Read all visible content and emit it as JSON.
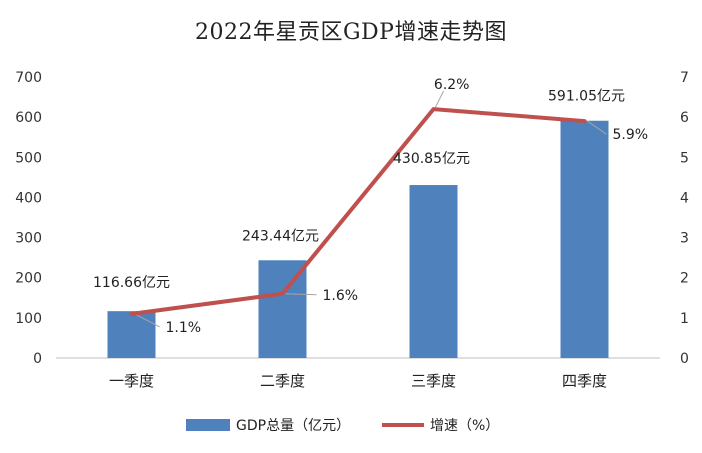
{
  "chart_data": {
    "type": "bar",
    "title": "2022年星贡区GDP增速走势图",
    "categories": [
      "一季度",
      "二季度",
      "三季度",
      "四季度"
    ],
    "series": [
      {
        "name": "GDP总量（亿元）",
        "chart_type": "bar",
        "axis": "left",
        "values": [
          116.66,
          243.44,
          430.85,
          591.05
        ],
        "data_labels": [
          "116.66亿元",
          "243.44亿元",
          "430.85亿元",
          "591.05亿元"
        ],
        "color": "#4f81bd"
      },
      {
        "name": "增速（%）",
        "chart_type": "line",
        "axis": "right",
        "values": [
          1.1,
          1.6,
          6.2,
          5.9
        ],
        "data_labels": [
          "1.1%",
          "1.6%",
          "6.2%",
          "5.9%"
        ],
        "color": "#c0504d"
      }
    ],
    "y_left": {
      "min": 0,
      "max": 700,
      "ticks": [
        "0",
        "100",
        "200",
        "300",
        "400",
        "500",
        "600",
        "700"
      ]
    },
    "y_right": {
      "min": 0,
      "max": 7,
      "ticks": [
        "0",
        "1",
        "2",
        "3",
        "4",
        "5",
        "6",
        "7"
      ]
    },
    "grid": false,
    "legend_position": "bottom"
  }
}
